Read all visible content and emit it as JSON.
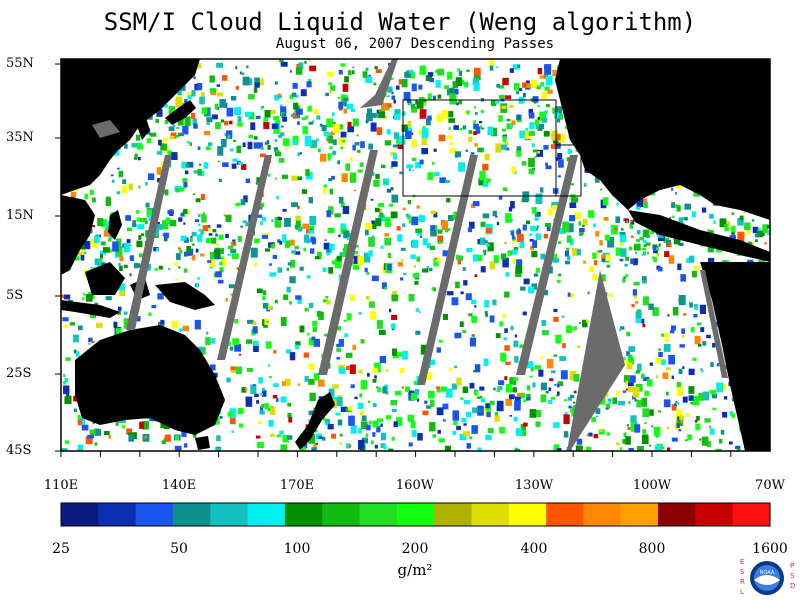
{
  "title": "SSM/I Cloud Liquid Water (Weng algorithm)",
  "subtitle": "August 06, 2007  Descending Passes",
  "lat_labels": [
    "55N",
    "35N",
    "15N",
    "5S",
    "25S",
    "45S"
  ],
  "lon_labels": [
    "110E",
    "140E",
    "170E",
    "160W",
    "130W",
    "100W",
    "70W"
  ],
  "colorbar": {
    "colors": [
      "#0b1a80",
      "#0a2fb0",
      "#1a55f0",
      "#119090",
      "#14c0c0",
      "#00f0f0",
      "#009000",
      "#11bb11",
      "#22dd22",
      "#11ff11",
      "#b0b000",
      "#dddd00",
      "#ffff00",
      "#ff5500",
      "#ff8800",
      "#ffa000",
      "#8b0000",
      "#c80000",
      "#ff1010"
    ],
    "labels": [
      "25",
      "50",
      "100",
      "200",
      "400",
      "800",
      "1600"
    ],
    "units": "g/m²"
  },
  "logo": {
    "left_letters": "ESRL",
    "right_letters": "PSD",
    "emblem": "NOAA"
  }
}
